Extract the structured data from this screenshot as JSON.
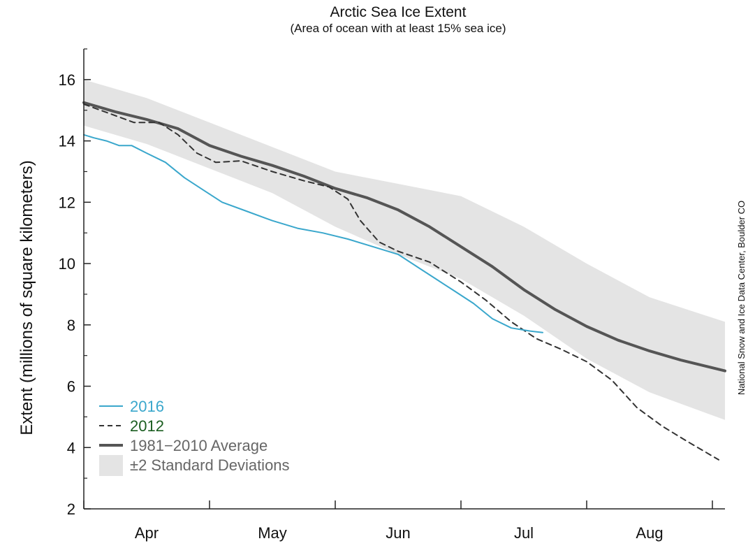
{
  "chart_data": {
    "type": "line",
    "title": "Arctic Sea Ice Extent",
    "subtitle": "(Area of ocean with at least 15% sea ice)",
    "ylabel": "Extent (millions of square kilometers)",
    "xlabel": "",
    "credit": "National Snow and Ice Data Center, Boulder CO",
    "ylim": [
      2,
      17
    ],
    "yticks": [
      2,
      4,
      6,
      8,
      10,
      12,
      14,
      16
    ],
    "xlim": [
      0,
      5.1
    ],
    "months": [
      {
        "label": "Apr",
        "center": 0.5
      },
      {
        "label": "May",
        "center": 1.5
      },
      {
        "label": "Jun",
        "center": 2.5
      },
      {
        "label": "Jul",
        "center": 3.5
      },
      {
        "label": "Aug",
        "center": 4.5
      }
    ],
    "month_boundaries": [
      0,
      1,
      2,
      3,
      4,
      5
    ],
    "legend_position": "lower-left",
    "band": {
      "name": "±2 Standard Deviations",
      "color": "#e4e4e4",
      "x": [
        0,
        0.5,
        1,
        1.5,
        2,
        2.5,
        3,
        3.5,
        4,
        4.5,
        5.1
      ],
      "upper": [
        16.0,
        15.4,
        14.6,
        13.8,
        13.0,
        12.6,
        12.2,
        11.2,
        10.0,
        8.9,
        8.1
      ],
      "lower": [
        14.5,
        13.9,
        13.1,
        12.3,
        11.2,
        10.3,
        9.5,
        8.3,
        6.9,
        5.8,
        4.9
      ]
    },
    "series": [
      {
        "name": "2016",
        "color": "#3aa7cc",
        "style": "solid",
        "width": 2,
        "x": [
          0,
          0.08,
          0.18,
          0.28,
          0.38,
          0.5,
          0.65,
          0.8,
          0.95,
          1.1,
          1.3,
          1.5,
          1.7,
          1.9,
          2.1,
          2.3,
          2.5,
          2.65,
          2.8,
          2.95,
          3.1,
          3.25,
          3.4,
          3.55,
          3.65
        ],
        "y": [
          14.2,
          14.1,
          14.0,
          13.85,
          13.85,
          13.6,
          13.3,
          12.8,
          12.4,
          12.0,
          11.7,
          11.4,
          11.15,
          11.0,
          10.8,
          10.55,
          10.3,
          9.9,
          9.5,
          9.1,
          8.7,
          8.2,
          7.9,
          7.8,
          7.75
        ]
      },
      {
        "name": "2012",
        "color": "#333333",
        "style": "dashed",
        "width": 2,
        "x": [
          0,
          0.2,
          0.4,
          0.6,
          0.75,
          0.9,
          1.05,
          1.25,
          1.5,
          1.75,
          1.95,
          2.1,
          2.2,
          2.35,
          2.5,
          2.75,
          3.0,
          3.2,
          3.4,
          3.6,
          3.8,
          4.0,
          4.2,
          4.4,
          4.6,
          4.8,
          5.05
        ],
        "y": [
          15.2,
          14.9,
          14.6,
          14.6,
          14.2,
          13.6,
          13.3,
          13.35,
          13.0,
          12.7,
          12.5,
          12.1,
          11.4,
          10.7,
          10.4,
          10.05,
          9.4,
          8.8,
          8.1,
          7.55,
          7.2,
          6.8,
          6.2,
          5.3,
          4.7,
          4.2,
          3.6
        ]
      },
      {
        "name": "1981−2010 Average",
        "color": "#555555",
        "style": "solid",
        "width": 4,
        "x": [
          0,
          0.25,
          0.5,
          0.75,
          1.0,
          1.25,
          1.5,
          1.75,
          2.0,
          2.25,
          2.5,
          2.75,
          3.0,
          3.25,
          3.5,
          3.75,
          4.0,
          4.25,
          4.5,
          4.75,
          5.1
        ],
        "y": [
          15.25,
          14.95,
          14.7,
          14.4,
          13.85,
          13.5,
          13.2,
          12.85,
          12.45,
          12.15,
          11.75,
          11.2,
          10.55,
          9.9,
          9.15,
          8.5,
          7.95,
          7.5,
          7.15,
          6.85,
          6.5
        ]
      }
    ]
  }
}
